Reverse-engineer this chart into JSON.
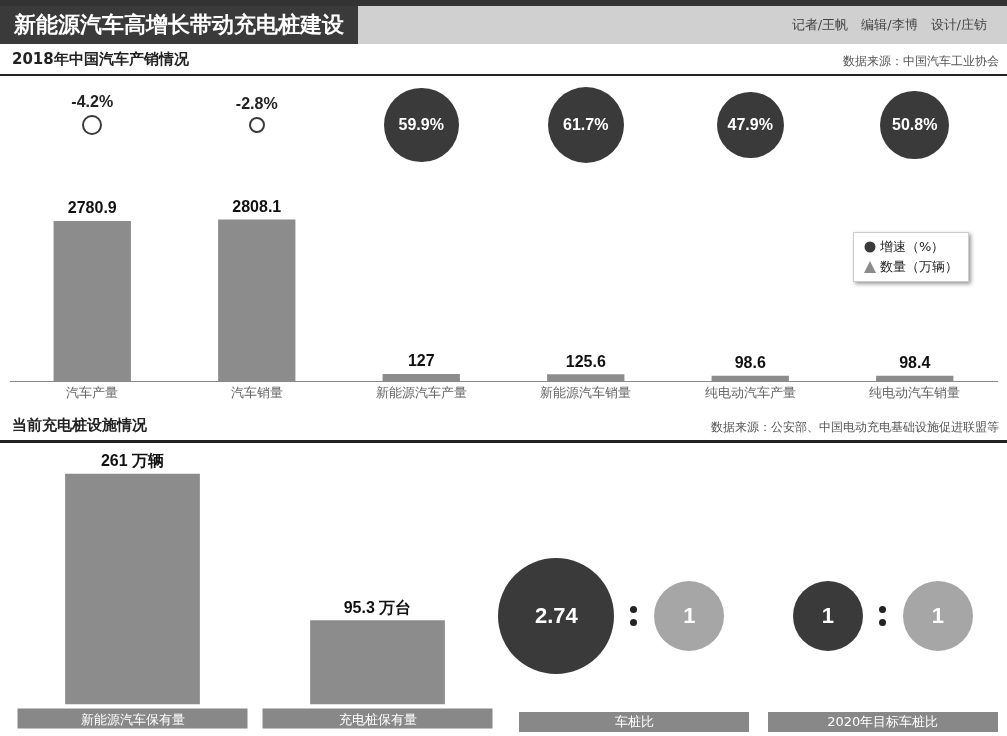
{
  "chart_data": [
    {
      "type": "other",
      "title": "新能源汽车高增长带动充电桩建设",
      "subtitle": "2018年中国汽车产销情况",
      "annotations": [
        "记者/王帆　编辑/李博　设计/庄钫",
        "数据来源：中国汽车工业协会"
      ],
      "legend": "right",
      "series": [
        {
          "name": "增速（%）",
          "color": "#3a3a3a",
          "values": [
            -4.2,
            -2.8,
            59.9,
            61.7,
            47.9,
            50.8
          ],
          "value_labels": [
            "-4.2%",
            "-2.8%",
            "59.9%",
            "61.7%",
            "47.9%",
            "50.8%"
          ]
        }
      ]
    },
    {
      "type": "bar",
      "categories": [
        "汽车产量",
        "汽车销量",
        "新能源汽车产量",
        "新能源汽车销量",
        "纯电动汽车产量",
        "纯电动汽车销量"
      ],
      "legend": "right",
      "series": [
        {
          "name": "数量（万辆）",
          "color": "#8c8c8c",
          "values": [
            2780.9,
            2808.1,
            127,
            125.6,
            98.6,
            98.4
          ],
          "value_labels": [
            "2780.9",
            "2808.1",
            "127",
            "125.6",
            "98.6",
            "98.4"
          ]
        }
      ]
    },
    {
      "type": "bar",
      "title": "当前充电桩设施情况",
      "annotations": [
        "数据来源：公安部、中国电动充电基础设施促进联盟等"
      ],
      "categories": [
        "新能源汽车保有量",
        "充电桩保有量"
      ],
      "values": [
        261,
        95.3
      ],
      "value_labels": [
        "261 万辆",
        "95.3 万台"
      ],
      "color": "#8c8c8c"
    },
    {
      "type": "other",
      "categories": [
        "车桩比",
        "2020年目标车桩比"
      ],
      "series": [
        {
          "color": "#3a3a3a",
          "values": [
            2.74,
            1
          ],
          "value_labels": [
            "2.74",
            "1"
          ]
        },
        {
          "color": "#a6a6a6",
          "values": [
            1,
            1
          ],
          "value_labels": [
            "1",
            "1"
          ]
        }
      ]
    }
  ]
}
